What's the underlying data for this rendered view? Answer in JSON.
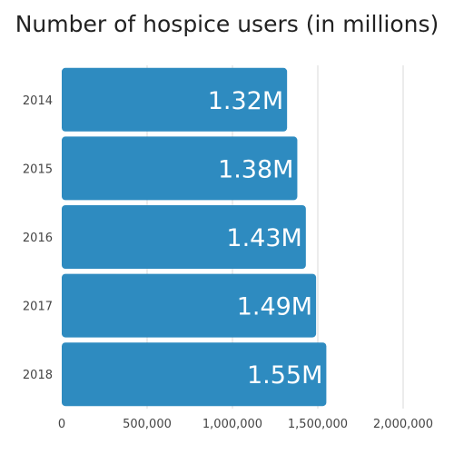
{
  "chart_data": {
    "type": "bar",
    "orientation": "horizontal",
    "title": "Number of hospice users (in millions)",
    "xlabel": "",
    "ylabel": "",
    "categories": [
      "2014",
      "2015",
      "2016",
      "2017",
      "2018"
    ],
    "values": [
      1320000,
      1380000,
      1430000,
      1490000,
      1550000
    ],
    "data_labels": [
      "1.32M",
      "1.38M",
      "1.43M",
      "1.49M",
      "1.55M"
    ],
    "xlim": [
      0,
      2000000
    ],
    "x_ticks": [
      0,
      500000,
      1000000,
      1500000,
      2000000
    ],
    "x_tick_labels": [
      "0",
      "500,000",
      "1,000,000",
      "1,500,000",
      "2,000,000"
    ],
    "grid": true,
    "legend": "none"
  },
  "colors": {
    "bar": "#2e8bc0",
    "grid": "#d9d9d9",
    "label": "#ffffff",
    "tick": "#444444",
    "title": "#222222"
  }
}
